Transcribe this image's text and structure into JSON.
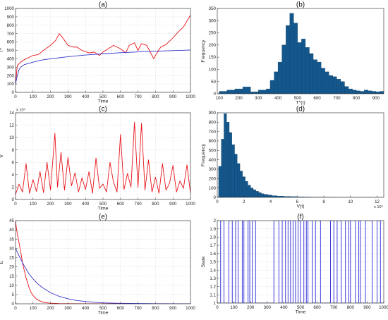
{
  "figure": {
    "panels": [
      {
        "id": "a",
        "panel_label": "(a)",
        "chart_data": {
          "type": "line",
          "xlabel": "Time",
          "ylabel": "T*",
          "xlim": [
            0,
            1000
          ],
          "ylim": [
            0,
            1000
          ],
          "xticks": [
            0,
            100,
            200,
            300,
            400,
            500,
            600,
            700,
            800,
            900,
            1000
          ],
          "yticks": [
            0,
            100,
            200,
            300,
            400,
            500,
            600,
            700,
            800,
            900,
            1000
          ],
          "grid": true,
          "series": [
            {
              "color": "#e8141a",
              "x": [
                0,
                10,
                20,
                30,
                50,
                80,
                100,
                130,
                160,
                200,
                230,
                250,
                270,
                300,
                330,
                350,
                380,
                420,
                450,
                480,
                500,
                530,
                560,
                600,
                630,
                650,
                680,
                700,
                720,
                750,
                770,
                790,
                800,
                830,
                860,
                900,
                930,
                960,
                980,
                1000
              ],
              "y": [
                100,
                320,
                340,
                360,
                390,
                420,
                440,
                450,
                500,
                560,
                620,
                700,
                650,
                560,
                540,
                540,
                500,
                470,
                480,
                440,
                480,
                520,
                560,
                520,
                470,
                560,
                590,
                500,
                580,
                560,
                480,
                400,
                440,
                540,
                570,
                650,
                720,
                780,
                850,
                920
              ]
            },
            {
              "color": "#3333cc",
              "x": [
                0,
                10,
                20,
                30,
                50,
                100,
                150,
                200,
                300,
                400,
                500,
                600,
                700,
                800,
                900,
                1000
              ],
              "y": [
                100,
                200,
                270,
                300,
                330,
                360,
                385,
                400,
                425,
                445,
                460,
                472,
                482,
                490,
                497,
                505
              ]
            }
          ]
        }
      },
      {
        "id": "b",
        "panel_label": "(b)",
        "chart_data": {
          "type": "bar",
          "xlabel": "T*(t)",
          "ylabel": "Frequency",
          "xlim": [
            90,
            940
          ],
          "ylim": [
            0,
            350
          ],
          "xticks": [
            100,
            200,
            300,
            400,
            500,
            600,
            700,
            800,
            900
          ],
          "yticks": [
            0,
            50,
            100,
            150,
            200,
            250,
            300,
            350
          ],
          "color": "#14578c",
          "histogram": {
            "x": [
              100,
              140,
              180,
              220,
              260,
              300,
              340,
              360,
              380,
              400,
              420,
              440,
              460,
              480,
              500,
              520,
              540,
              560,
              580,
              600,
              620,
              640,
              660,
              680,
              700,
              720,
              740,
              760,
              780,
              800,
              820,
              840,
              860,
              880,
              900,
              920,
              940
            ],
            "y": [
              10,
              15,
              20,
              28,
              8,
              15,
              20,
              55,
              90,
              130,
              200,
              280,
              330,
              290,
              210,
              225,
              190,
              165,
              140,
              130,
              105,
              90,
              75,
              70,
              60,
              50,
              30,
              20,
              15,
              12,
              10,
              15,
              12,
              10,
              8,
              10,
              8
            ]
          }
        }
      },
      {
        "id": "c",
        "panel_label": "(c)",
        "chart_data": {
          "type": "line",
          "xlabel": "Time",
          "ylabel": "V",
          "exponent_label": "x 10⁴",
          "xlim": [
            0,
            1000
          ],
          "ylim": [
            0,
            14
          ],
          "xticks": [
            0,
            100,
            200,
            300,
            400,
            500,
            600,
            700,
            800,
            900,
            1000
          ],
          "yticks": [
            0,
            2,
            4,
            6,
            8,
            10,
            12,
            14
          ],
          "grid": true,
          "series": [
            {
              "color": "#e8141a",
              "x": [
                0,
                20,
                40,
                60,
                80,
                100,
                120,
                140,
                160,
                180,
                200,
                225,
                240,
                260,
                280,
                300,
                320,
                340,
                360,
                380,
                400,
                420,
                440,
                460,
                480,
                500,
                520,
                540,
                560,
                580,
                600,
                620,
                640,
                660,
                680,
                700,
                720,
                740,
                760,
                780,
                800,
                820,
                840,
                860,
                880,
                900,
                920,
                940,
                960,
                980,
                1000
              ],
              "y": [
                0.8,
                2.5,
                1.2,
                5.8,
                1.0,
                3.2,
                1.3,
                4.5,
                1.1,
                6.0,
                1.5,
                10.7,
                2.0,
                7.6,
                1.5,
                6.8,
                2.2,
                4.3,
                1.2,
                3.5,
                1.6,
                4.5,
                1.0,
                6.7,
                1.8,
                2.5,
                1.2,
                6.0,
                2.8,
                1.2,
                10.5,
                1.6,
                4.2,
                2.0,
                12.5,
                2.0,
                12.3,
                1.5,
                6.4,
                1.2,
                3.6,
                1.0,
                5.8,
                1.5,
                2.6,
                5.5,
                1.2,
                3.0,
                1.8,
                5.6,
                1.0
              ]
            }
          ]
        }
      },
      {
        "id": "d",
        "panel_label": "(d)",
        "chart_data": {
          "type": "bar",
          "xlabel": "V(t)",
          "ylabel": "Frequency",
          "exponent_label": "x 10⁴",
          "xlim": [
            0,
            12.5
          ],
          "ylim": [
            0,
            900
          ],
          "xticks": [
            0,
            2,
            4,
            6,
            8,
            10,
            12
          ],
          "yticks": [
            0,
            100,
            200,
            300,
            400,
            500,
            600,
            700,
            800,
            900
          ],
          "color": "#14578c",
          "histogram": {
            "x": [
              0.1,
              0.3,
              0.5,
              0.7,
              0.9,
              1.1,
              1.3,
              1.5,
              1.7,
              1.9,
              2.1,
              2.3,
              2.5,
              2.7,
              2.9,
              3.1,
              3.3,
              3.5,
              3.8,
              4.1,
              4.5,
              5.0,
              5.5,
              6.0,
              6.5,
              7.0,
              8.0,
              9.0,
              10.0,
              11.0,
              12.0
            ],
            "y": [
              330,
              620,
              890,
              800,
              690,
              560,
              460,
              360,
              280,
              220,
              170,
              130,
              100,
              80,
              65,
              50,
              40,
              32,
              25,
              18,
              14,
              10,
              8,
              5,
              4,
              3,
              2,
              1,
              1,
              1,
              1
            ]
          }
        }
      },
      {
        "id": "e",
        "panel_label": "(e)",
        "chart_data": {
          "type": "line",
          "xlabel": "Time",
          "ylabel": "E",
          "xlim": [
            0,
            1000
          ],
          "ylim": [
            0,
            45
          ],
          "xticks": [
            0,
            100,
            200,
            300,
            400,
            500,
            600,
            700,
            800,
            900,
            1000
          ],
          "yticks": [
            0,
            5,
            10,
            15,
            20,
            25,
            30,
            35,
            40,
            45
          ],
          "grid": true,
          "series": [
            {
              "color": "#e8141a",
              "x": [
                0,
                5,
                10,
                20,
                30,
                40,
                50,
                60,
                70,
                80,
                90,
                100,
                120,
                140,
                160,
                200,
                250,
                300,
                400,
                500,
                1000
              ],
              "y": [
                45,
                41,
                38,
                33,
                28,
                22,
                18,
                14,
                11,
                8,
                6,
                4.5,
                2.5,
                1.5,
                0.8,
                0.3,
                0.1,
                0.05,
                0.02,
                0.01,
                0
              ]
            },
            {
              "color": "#3333cc",
              "x": [
                0,
                25,
                50,
                75,
                100,
                125,
                150,
                200,
                250,
                300,
                350,
                400,
                500,
                600,
                800,
                1000
              ],
              "y": [
                30,
                25,
                20.5,
                16.5,
                13.5,
                11,
                9,
                6,
                4,
                2.7,
                1.8,
                1.2,
                0.5,
                0.25,
                0.05,
                0.01
              ]
            }
          ]
        }
      },
      {
        "id": "f",
        "panel_label": "(f)",
        "chart_data": {
          "type": "line",
          "xlabel": "Time",
          "ylabel": "State",
          "xlim": [
            0,
            1000
          ],
          "ylim": [
            1,
            2
          ],
          "xticks": [
            0,
            100,
            200,
            300,
            400,
            500,
            600,
            700,
            800,
            900,
            1000
          ],
          "yticks": [
            1,
            1.1,
            1.2,
            1.3,
            1.4,
            1.5,
            1.6,
            1.7,
            1.8,
            1.9,
            2
          ],
          "grid": true,
          "series": [
            {
              "color": "#2b2bd9",
              "switch_times": [
                20,
                40,
                70,
                90,
                110,
                125,
                150,
                160,
                185,
                195,
                210,
                230,
                340,
                370,
                390,
                410,
                425,
                440,
                455,
                470,
                485,
                500,
                520,
                535,
                545,
                570,
                590,
                620,
                680,
                700,
                720,
                745,
                770,
                790,
                800,
                830,
                850,
                860,
                890,
                930,
                960,
                980
              ],
              "start_state": 1
            }
          ]
        }
      }
    ]
  }
}
